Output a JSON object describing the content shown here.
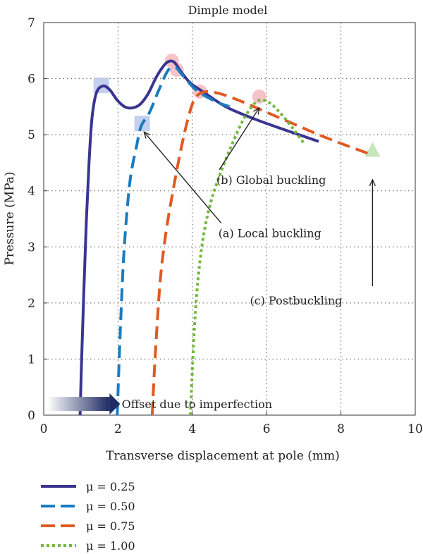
{
  "chart_data": {
    "type": "line",
    "title": "Dimple model",
    "xlabel": "Transverse displacement at pole (mm)",
    "ylabel": "Pressure (MPa)",
    "xlim": [
      0,
      10
    ],
    "ylim": [
      0,
      7
    ],
    "xticks": [
      "0",
      "2",
      "4",
      "6",
      "8",
      "10"
    ],
    "yticks": [
      "0",
      "1",
      "2",
      "3",
      "4",
      "5",
      "6",
      "7"
    ],
    "grid": true,
    "legend_position": "below-left",
    "series": [
      {
        "name": "μ = 0.25",
        "color": "#3a3590",
        "style": "solid",
        "points": [
          [
            0.98,
            0
          ],
          [
            1.02,
            1.0
          ],
          [
            1.08,
            2.2
          ],
          [
            1.15,
            3.5
          ],
          [
            1.22,
            4.5
          ],
          [
            1.3,
            5.3
          ],
          [
            1.42,
            5.75
          ],
          [
            1.6,
            5.87
          ],
          [
            1.78,
            5.8
          ],
          [
            2.0,
            5.6
          ],
          [
            2.25,
            5.48
          ],
          [
            2.55,
            5.52
          ],
          [
            2.8,
            5.72
          ],
          [
            3.05,
            6.05
          ],
          [
            3.3,
            6.28
          ],
          [
            3.5,
            6.3
          ],
          [
            3.7,
            6.12
          ],
          [
            3.95,
            5.92
          ],
          [
            4.3,
            5.76
          ],
          [
            4.9,
            5.5
          ],
          [
            5.6,
            5.3
          ],
          [
            6.3,
            5.13
          ],
          [
            7.0,
            4.97
          ],
          [
            7.4,
            4.88
          ]
        ]
      },
      {
        "name": "μ = 0.50",
        "color": "#1a7cc0",
        "style": "dashed",
        "points": [
          [
            1.98,
            0
          ],
          [
            2.02,
            0.8
          ],
          [
            2.08,
            1.8
          ],
          [
            2.15,
            2.8
          ],
          [
            2.25,
            3.7
          ],
          [
            2.35,
            4.3
          ],
          [
            2.5,
            4.8
          ],
          [
            2.62,
            5.15
          ],
          [
            2.85,
            5.4
          ],
          [
            3.1,
            5.8
          ],
          [
            3.35,
            6.15
          ],
          [
            3.55,
            6.2
          ],
          [
            3.75,
            6.05
          ],
          [
            4.1,
            5.8
          ],
          [
            4.6,
            5.6
          ],
          [
            5.0,
            5.5
          ]
        ]
      },
      {
        "name": "μ = 0.75",
        "color": "#e05a24",
        "style": "dashed",
        "points": [
          [
            2.92,
            0
          ],
          [
            2.98,
            0.8
          ],
          [
            3.06,
            1.7
          ],
          [
            3.15,
            2.5
          ],
          [
            3.3,
            3.3
          ],
          [
            3.48,
            4.0
          ],
          [
            3.65,
            4.6
          ],
          [
            3.85,
            5.2
          ],
          [
            4.05,
            5.62
          ],
          [
            4.3,
            5.76
          ],
          [
            4.7,
            5.74
          ],
          [
            5.3,
            5.6
          ],
          [
            6.0,
            5.4
          ],
          [
            6.7,
            5.2
          ],
          [
            7.4,
            5.0
          ],
          [
            8.1,
            4.82
          ],
          [
            8.8,
            4.65
          ]
        ]
      },
      {
        "name": "μ = 1.00",
        "color": "#74b83c",
        "style": "dotted",
        "points": [
          [
            3.95,
            0
          ],
          [
            4.0,
            0.8
          ],
          [
            4.06,
            1.6
          ],
          [
            4.15,
            2.4
          ],
          [
            4.3,
            3.2
          ],
          [
            4.5,
            3.8
          ],
          [
            4.75,
            4.3
          ],
          [
            5.05,
            4.8
          ],
          [
            5.4,
            5.3
          ],
          [
            5.75,
            5.6
          ],
          [
            6.05,
            5.58
          ],
          [
            6.35,
            5.4
          ],
          [
            6.7,
            5.12
          ],
          [
            7.0,
            4.85
          ]
        ]
      }
    ],
    "markers": [
      {
        "shape": "square",
        "x": 1.55,
        "y": 5.88,
        "color": "#b9c7ea"
      },
      {
        "shape": "square",
        "x": 2.65,
        "y": 5.2,
        "color": "#b9c7ea"
      },
      {
        "shape": "circle",
        "x": 3.45,
        "y": 6.32,
        "color": "#f4b8c0"
      },
      {
        "shape": "circle",
        "x": 3.58,
        "y": 6.16,
        "color": "#f4b8c0"
      },
      {
        "shape": "circle",
        "x": 4.2,
        "y": 5.77,
        "color": "#f4b8c0"
      },
      {
        "shape": "circle",
        "x": 5.8,
        "y": 5.68,
        "color": "#f4b8c0"
      },
      {
        "shape": "triangle",
        "x": 8.85,
        "y": 4.72,
        "color": "#bfe3b4"
      }
    ],
    "annotations": [
      {
        "text": "(b) Global buckling",
        "x": 4.65,
        "y": 4.2,
        "arrow_to": [
          5.8,
          5.48
        ]
      },
      {
        "text": "(a) Local buckling",
        "x": 4.7,
        "y": 3.25,
        "arrow_to": [
          2.7,
          5.05
        ]
      },
      {
        "text": "(c) Postbuckling",
        "x": 5.55,
        "y": 2.05,
        "arrow_from": [
          8.85,
          2.3
        ],
        "arrow_to": [
          8.85,
          4.2
        ]
      },
      {
        "text": "Offset due to imperfection",
        "x": 2.1,
        "y": 0.2,
        "arrow_from": [
          0.1,
          0.2
        ],
        "arrow_to": [
          2.0,
          0.2
        ]
      }
    ]
  }
}
